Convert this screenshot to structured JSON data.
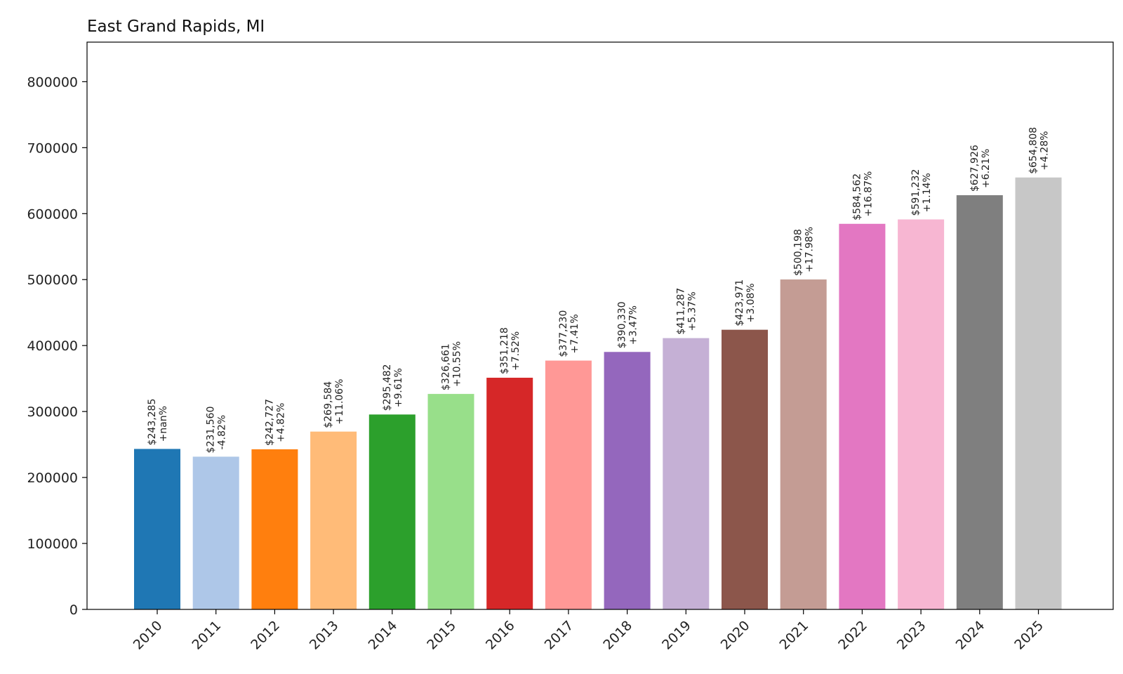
{
  "chart_data": {
    "type": "bar",
    "title": "East Grand Rapids, MI",
    "xlabel": "",
    "ylabel": "",
    "categories": [
      "2010",
      "2011",
      "2012",
      "2013",
      "2014",
      "2015",
      "2016",
      "2017",
      "2018",
      "2019",
      "2020",
      "2021",
      "2022",
      "2023",
      "2024",
      "2025"
    ],
    "values": [
      243285,
      231560,
      242727,
      269584,
      295482,
      326661,
      351218,
      377230,
      390330,
      411287,
      423971,
      500198,
      584562,
      591232,
      627926,
      654808
    ],
    "value_labels": [
      "$243,285",
      "$231,560",
      "$242,727",
      "$269,584",
      "$295,482",
      "$326,661",
      "$351,218",
      "$377,230",
      "$390,330",
      "$411,287",
      "$423,971",
      "$500,198",
      "$584,562",
      "$591,232",
      "$627,926",
      "$654,808"
    ],
    "change_labels": [
      "+nan%",
      "-4.82%",
      "+4.82%",
      "+11.06%",
      "+9.61%",
      "+10.55%",
      "+7.52%",
      "+7.41%",
      "+3.47%",
      "+5.37%",
      "+3.08%",
      "+17.98%",
      "+16.87%",
      "+1.14%",
      "+6.21%",
      "+4.28%"
    ],
    "colors": [
      "#1f77b4",
      "#aec7e8",
      "#ff7f0e",
      "#ffbb78",
      "#2ca02c",
      "#98df8a",
      "#d62728",
      "#ff9896",
      "#9467bd",
      "#c5b0d5",
      "#8c564b",
      "#c49c94",
      "#e377c2",
      "#f7b6d2",
      "#7f7f7f",
      "#c7c7c7"
    ],
    "ylim": [
      0,
      860000
    ],
    "yticks": [
      0,
      100000,
      200000,
      300000,
      400000,
      500000,
      600000,
      700000,
      800000
    ],
    "ytick_labels": [
      "0",
      "100000",
      "200000",
      "300000",
      "400000",
      "500000",
      "600000",
      "700000",
      "800000"
    ],
    "grid": false,
    "legend": "none"
  }
}
